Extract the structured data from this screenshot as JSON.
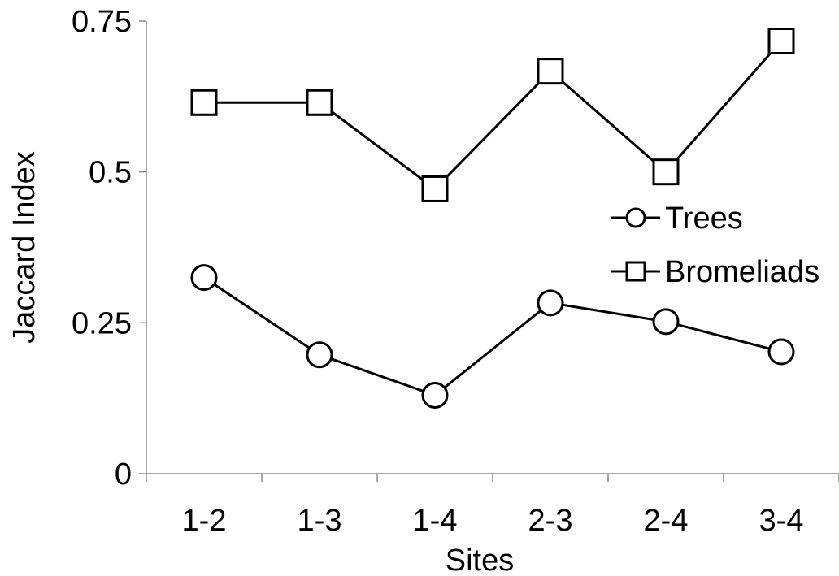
{
  "chart_data": {
    "type": "line",
    "title": "",
    "xlabel": "Sites",
    "ylabel": "Jaccard Index",
    "categories": [
      "1-2",
      "1-3",
      "1-4",
      "2-3",
      "2-4",
      "3-4"
    ],
    "ylim": [
      0,
      0.75
    ],
    "yticks": [
      0,
      0.25,
      0.5,
      0.75
    ],
    "ytick_labels": [
      "0",
      "0.25",
      "0.5",
      "0.75"
    ],
    "grid": false,
    "legend_position": "right",
    "series": [
      {
        "name": "Trees",
        "marker": "circle",
        "color": "#000000",
        "values": [
          0.325,
          0.197,
          0.13,
          0.283,
          0.252,
          0.202
        ]
      },
      {
        "name": "Bromeliads",
        "marker": "square",
        "color": "#000000",
        "values": [
          0.615,
          0.615,
          0.472,
          0.667,
          0.5,
          0.717
        ]
      }
    ]
  }
}
